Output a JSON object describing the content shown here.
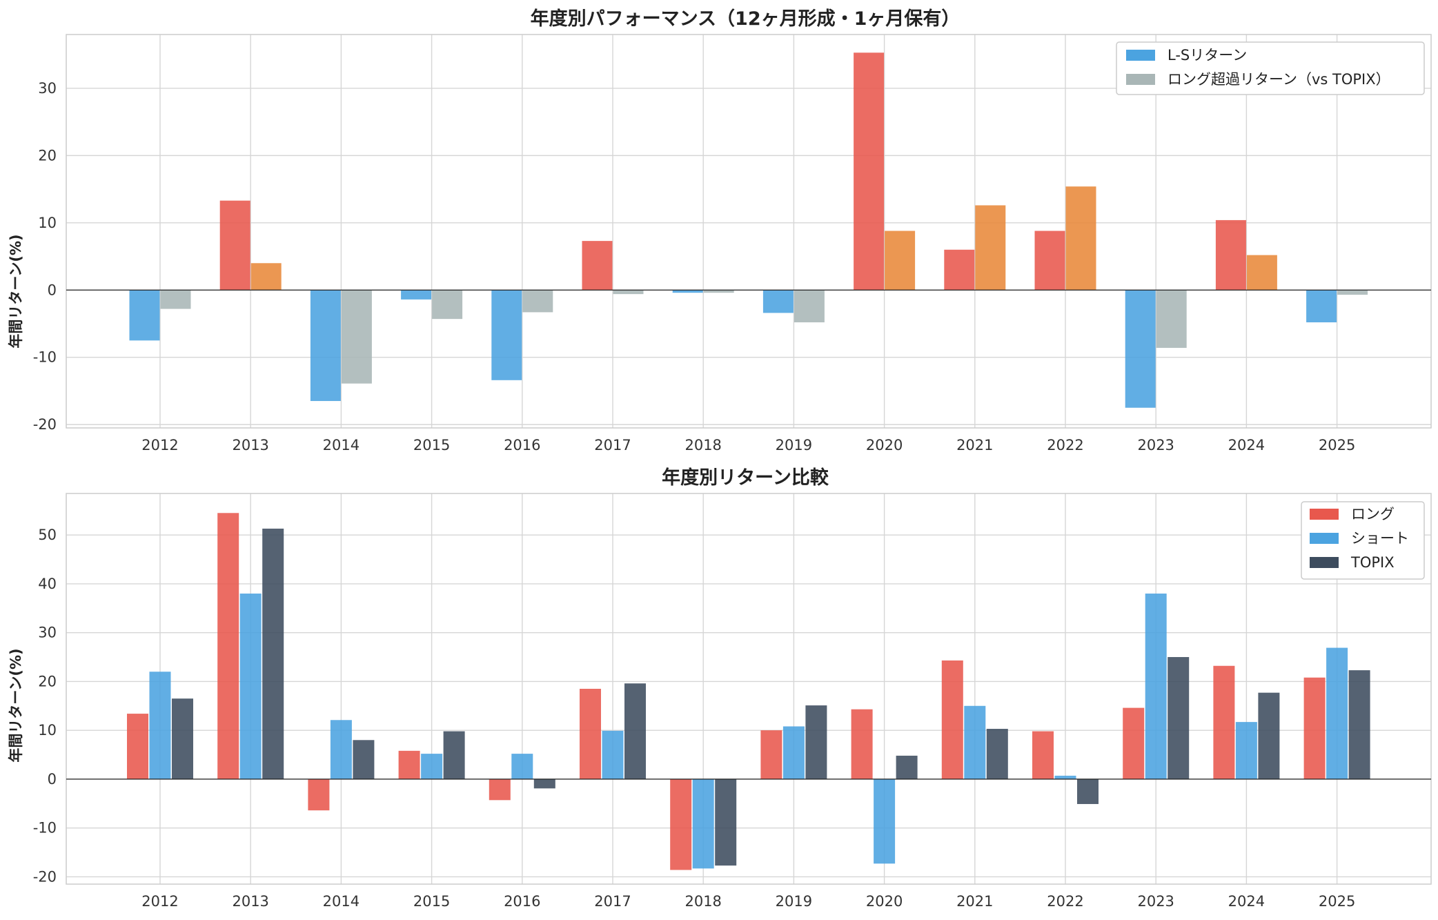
{
  "chart_data": [
    {
      "type": "bar",
      "title": "年度別パフォーマンス（12ヶ月形成・1ヶ月保有）",
      "xlabel": "",
      "ylabel": "年間リターン(%)",
      "ylim": [
        -20.5,
        38
      ],
      "yticks": [
        -20,
        -10,
        0,
        10,
        20,
        30
      ],
      "ytick_labels": [
        "-20",
        "-10",
        "0",
        "10",
        "20",
        "30"
      ],
      "grid": true,
      "legend_position": "top-right",
      "categories": [
        "2012",
        "2013",
        "2014",
        "2015",
        "2016",
        "2017",
        "2018",
        "2019",
        "2020",
        "2021",
        "2022",
        "2023",
        "2024",
        "2025"
      ],
      "series": [
        {
          "name": "L-Sリターン",
          "values": [
            -7.5,
            13.3,
            -16.5,
            -1.4,
            -13.4,
            7.3,
            -0.4,
            -3.4,
            35.3,
            6.0,
            8.8,
            -17.5,
            10.4,
            -4.8
          ],
          "color": "#4ba3e0",
          "neg_color": "#4ba3e0",
          "pos_color": "#e8584d"
        },
        {
          "name": "ロング超過リターン（vs TOPIX）",
          "values": [
            -2.8,
            4.0,
            -13.9,
            -4.3,
            -3.3,
            -0.6,
            -0.4,
            -4.8,
            8.8,
            12.6,
            15.4,
            -8.6,
            5.2,
            -0.7
          ],
          "color": "#a9b6b6",
          "neg_color": "#a9b6b6",
          "pos_color": "#e8893a"
        }
      ]
    },
    {
      "type": "bar",
      "title": "年度別リターン比較",
      "xlabel": "",
      "ylabel": "年間リターン(%)",
      "ylim": [
        -21.5,
        58.5
      ],
      "yticks": [
        -20,
        -10,
        0,
        10,
        20,
        30,
        40,
        50
      ],
      "ytick_labels": [
        "-20",
        "-10",
        "0",
        "10",
        "20",
        "30",
        "40",
        "50"
      ],
      "grid": true,
      "legend_position": "top-right",
      "categories": [
        "2012",
        "2013",
        "2014",
        "2015",
        "2016",
        "2017",
        "2018",
        "2019",
        "2020",
        "2021",
        "2022",
        "2023",
        "2024",
        "2025"
      ],
      "series": [
        {
          "name": "ロング",
          "values": [
            13.4,
            54.5,
            -6.4,
            5.8,
            -4.3,
            18.5,
            -18.6,
            10.0,
            14.3,
            24.3,
            9.8,
            14.6,
            23.2,
            20.8
          ],
          "color": "#e8584d"
        },
        {
          "name": "ショート",
          "values": [
            22.0,
            38.0,
            12.1,
            5.2,
            5.2,
            9.9,
            -18.3,
            10.8,
            -17.3,
            15.0,
            0.7,
            38.0,
            11.7,
            26.9
          ],
          "color": "#4ba3e0"
        },
        {
          "name": "TOPIX",
          "values": [
            16.5,
            51.3,
            8.0,
            9.8,
            -1.9,
            19.6,
            -17.7,
            15.1,
            4.8,
            10.3,
            -5.1,
            25.0,
            17.7,
            22.3
          ],
          "color": "#3d4c5e"
        }
      ]
    }
  ]
}
